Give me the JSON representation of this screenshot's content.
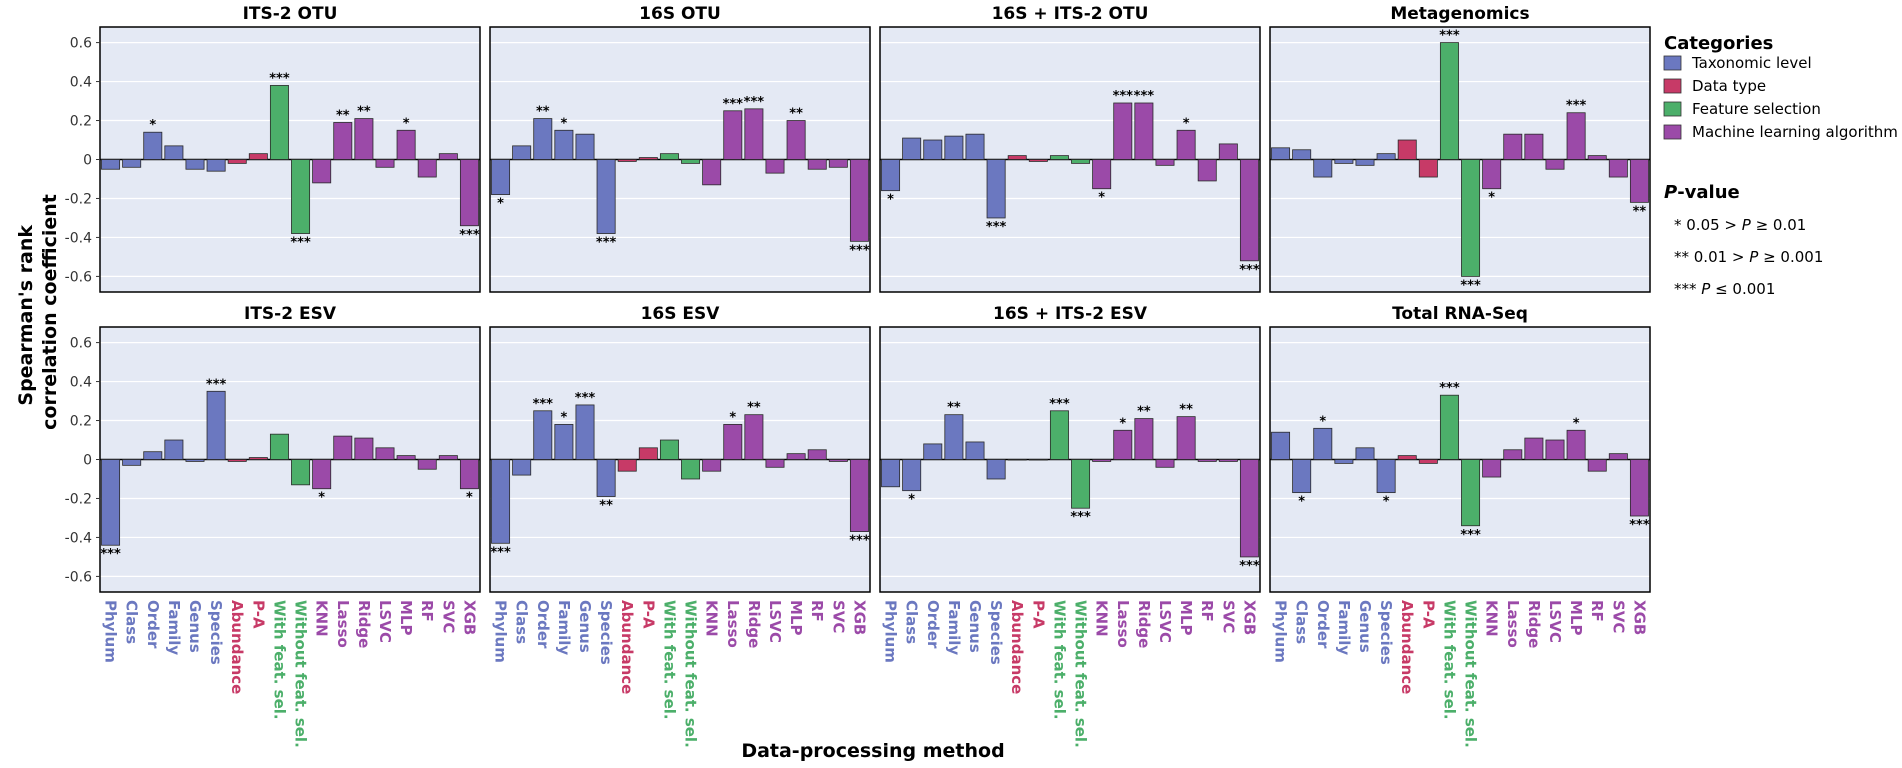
{
  "chart_data": {
    "type": "bar",
    "ylabel": [
      "Spearman's rank",
      "correlation coefficient"
    ],
    "xlabel": "Data-processing method",
    "ylim": [
      -0.68,
      0.68
    ],
    "yticks": [
      "0.6",
      "0.4",
      "0.2",
      "0",
      "-0.2",
      "-0.4",
      "-0.6"
    ],
    "categories": [
      "Phylum",
      "Class",
      "Order",
      "Family",
      "Genus",
      "Species",
      "Abundance",
      "P-A",
      "With feat. sel.",
      "Without feat. sel.",
      "KNN",
      "Lasso",
      "Ridge",
      "LSVC",
      "MLP",
      "RF",
      "SVC",
      "XGB"
    ],
    "category_groups": [
      "tax",
      "tax",
      "tax",
      "tax",
      "tax",
      "tax",
      "dt",
      "dt",
      "fs",
      "fs",
      "ml",
      "ml",
      "ml",
      "ml",
      "ml",
      "ml",
      "ml",
      "ml"
    ],
    "colors": {
      "tax": "#6b78c0",
      "dt": "#c73a67",
      "fs": "#4caf6a",
      "ml": "#9b4aa8",
      "panel_bg": "#e4e9f4",
      "text_tax": "#6b78c0",
      "text_dt": "#c73a67",
      "text_fs": "#4caf6a",
      "text_ml": "#9b4aa8"
    },
    "legend": {
      "title": "Categories",
      "position": "right",
      "items": [
        {
          "label": "Taxonomic level",
          "group": "tax"
        },
        {
          "label": "Data type",
          "group": "dt"
        },
        {
          "label": "Feature selection",
          "group": "fs"
        },
        {
          "label": "Machine learning algorithm",
          "group": "ml"
        }
      ]
    },
    "pvalue_legend": {
      "title_italic": "P",
      "title_rest": "-value",
      "rows": [
        {
          "stars": "* 0.05 > ",
          "p": "P",
          "rest": " ≥ 0.01"
        },
        {
          "stars": "** 0.01 > ",
          "p": "P",
          "rest": " ≥ 0.001"
        },
        {
          "stars": "*** ",
          "p": "P",
          "rest": " ≤ 0.001"
        }
      ]
    },
    "panels": [
      {
        "title": "ITS-2 OTU",
        "values": [
          -0.05,
          -0.04,
          0.14,
          0.07,
          -0.05,
          -0.06,
          -0.02,
          0.03,
          0.38,
          -0.38,
          -0.12,
          0.19,
          0.21,
          -0.04,
          0.15,
          -0.09,
          0.03,
          -0.34
        ],
        "sig": [
          "",
          "",
          "*",
          "",
          "",
          "",
          "",
          "",
          "***",
          "***",
          "",
          "**",
          "**",
          "",
          "*",
          "",
          "",
          "***"
        ]
      },
      {
        "title": "16S OTU",
        "values": [
          -0.18,
          0.07,
          0.21,
          0.15,
          0.13,
          -0.38,
          -0.01,
          0.01,
          0.03,
          -0.02,
          -0.13,
          0.25,
          0.26,
          -0.07,
          0.2,
          -0.05,
          -0.04,
          -0.42
        ],
        "sig": [
          "*",
          "",
          "**",
          "*",
          "",
          "***",
          "",
          "",
          "",
          "",
          "",
          "***",
          "***",
          "",
          "**",
          "",
          "",
          "***"
        ]
      },
      {
        "title": "16S + ITS-2 OTU",
        "values": [
          -0.16,
          0.11,
          0.1,
          0.12,
          0.13,
          -0.3,
          0.02,
          -0.01,
          0.02,
          -0.02,
          -0.15,
          0.29,
          0.29,
          -0.03,
          0.15,
          -0.11,
          0.08,
          -0.52
        ],
        "sig": [
          "*",
          "",
          "",
          "",
          "",
          "***",
          "",
          "",
          "",
          "",
          "*",
          "***",
          "***",
          "",
          "*",
          "",
          "",
          "***"
        ]
      },
      {
        "title": "Metagenomics",
        "values": [
          0.06,
          0.05,
          -0.09,
          -0.02,
          -0.03,
          0.03,
          0.1,
          -0.09,
          0.6,
          -0.6,
          -0.15,
          0.13,
          0.13,
          -0.05,
          0.24,
          0.02,
          -0.09,
          -0.22
        ],
        "sig": [
          "",
          "",
          "",
          "",
          "",
          "",
          "",
          "",
          "***",
          "***",
          "*",
          "",
          "",
          "",
          "***",
          "",
          "",
          "**"
        ]
      },
      {
        "title": "ITS-2 ESV",
        "values": [
          -0.44,
          -0.03,
          0.04,
          0.1,
          -0.01,
          0.35,
          -0.01,
          0.01,
          0.13,
          -0.13,
          -0.15,
          0.12,
          0.11,
          0.06,
          0.02,
          -0.05,
          0.02,
          -0.15
        ],
        "sig": [
          "***",
          "",
          "",
          "",
          "",
          "***",
          "",
          "",
          "",
          "",
          "*",
          "",
          "",
          "",
          "",
          "",
          "",
          "*"
        ]
      },
      {
        "title": "16S ESV",
        "values": [
          -0.43,
          -0.08,
          0.25,
          0.18,
          0.28,
          -0.19,
          -0.06,
          0.06,
          0.1,
          -0.1,
          -0.06,
          0.18,
          0.23,
          -0.04,
          0.03,
          0.05,
          -0.01,
          -0.37
        ],
        "sig": [
          "***",
          "",
          "***",
          "*",
          "***",
          "**",
          "",
          "",
          "",
          "",
          "",
          "*",
          "**",
          "",
          "",
          "",
          "",
          "***"
        ]
      },
      {
        "title": "16S + ITS-2 ESV",
        "values": [
          -0.14,
          -0.16,
          0.08,
          0.23,
          0.09,
          -0.1,
          0.0,
          0.0,
          0.25,
          -0.25,
          -0.01,
          0.15,
          0.21,
          -0.04,
          0.22,
          -0.01,
          -0.01,
          -0.5
        ],
        "sig": [
          "",
          "*",
          "",
          "**",
          "",
          "",
          "",
          "",
          "***",
          "***",
          "",
          "*",
          "**",
          "",
          "**",
          "",
          "",
          "***"
        ]
      },
      {
        "title": "Total RNA-Seq",
        "values": [
          0.14,
          -0.17,
          0.16,
          -0.02,
          0.06,
          -0.17,
          0.02,
          -0.02,
          0.33,
          -0.34,
          -0.09,
          0.05,
          0.11,
          0.1,
          0.15,
          -0.06,
          0.03,
          -0.29
        ],
        "sig": [
          "",
          "*",
          "*",
          "",
          "",
          "*",
          "",
          "",
          "***",
          "***",
          "",
          "",
          "",
          "",
          "*",
          "",
          "",
          "***"
        ]
      }
    ]
  }
}
